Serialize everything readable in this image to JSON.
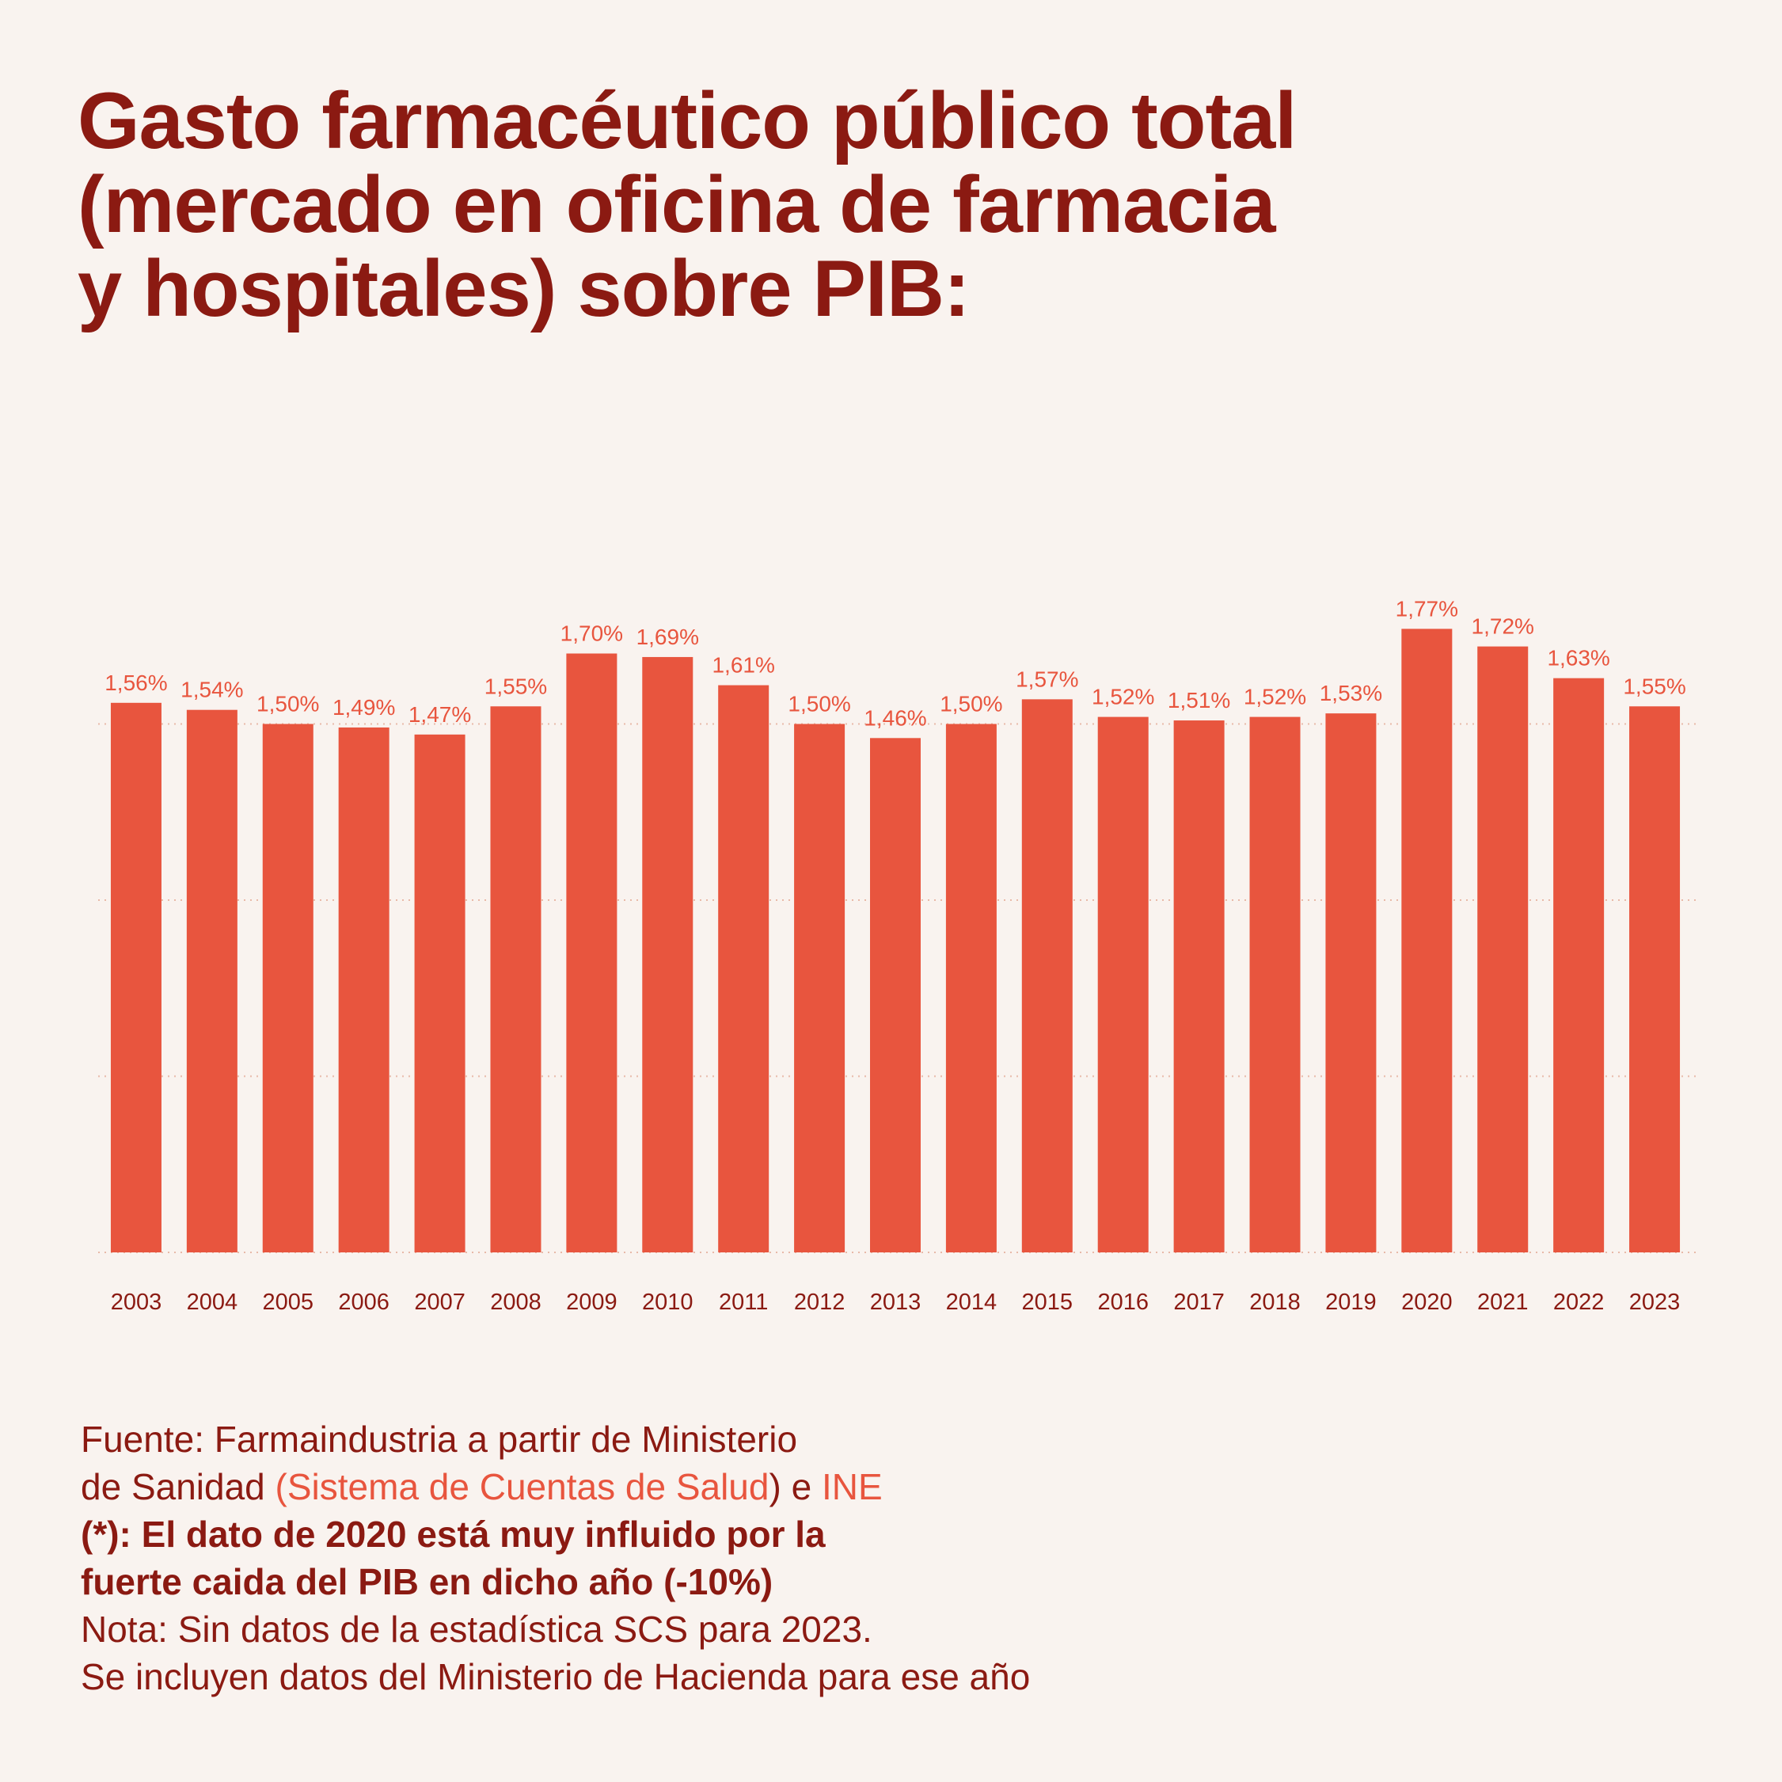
{
  "title_lines": [
    "Gasto farmacéutico público total",
    "(mercado en oficina de farmacia",
    "y hospitales) sobre PIB:"
  ],
  "colors": {
    "background": "#f9f3ef",
    "bar": "#e8553e",
    "title": "#8b1a12",
    "label": "#e8553e",
    "tick": "#8b1a12",
    "grid": "#e8b9a8"
  },
  "chart_data": {
    "type": "bar",
    "categories": [
      "2003",
      "2004",
      "2005",
      "2006",
      "2007",
      "2008",
      "2009",
      "2010",
      "2011",
      "2012",
      "2013",
      "2014",
      "2015",
      "2016",
      "2017",
      "2018",
      "2019",
      "2020",
      "2021",
      "2022",
      "2023"
    ],
    "values": [
      1.56,
      1.54,
      1.5,
      1.49,
      1.47,
      1.55,
      1.7,
      1.69,
      1.61,
      1.5,
      1.46,
      1.5,
      1.57,
      1.52,
      1.51,
      1.52,
      1.53,
      1.77,
      1.72,
      1.63,
      1.55
    ],
    "data_labels": [
      "1,56%",
      "1,54%",
      "1,50%",
      "1,49%",
      "1,47%",
      "1,55%",
      "1,70%",
      "1,69%",
      "1,61%",
      "1,50%",
      "1,46%",
      "1,50%",
      "1,57%",
      "1,52%",
      "1,51%",
      "1,52%",
      "1,53%",
      "1,77%",
      "1,72%",
      "1,63%",
      "1,55%"
    ],
    "ylim": [
      0,
      2.0
    ],
    "gridlines": [
      0,
      0.5,
      1.0,
      1.5
    ],
    "grid": true,
    "legend": "none"
  },
  "footer": {
    "source_line1": "Fuente: Farmaindustria a partir de Ministerio",
    "source_line2_pre": "de Sanidad ",
    "source_link1": "(Sistema de Cuentas de Salud",
    "source_line2_mid": ") e ",
    "source_link2": "INE",
    "note_bold_1": "(*): El dato de 2020 está muy influido por la",
    "note_bold_2": "fuerte caida del PIB en dicho año (-10%)",
    "note_1": "Nota: Sin datos de la estadística SCS para 2023.",
    "note_2": "Se incluyen datos del Ministerio de Hacienda para ese año"
  }
}
